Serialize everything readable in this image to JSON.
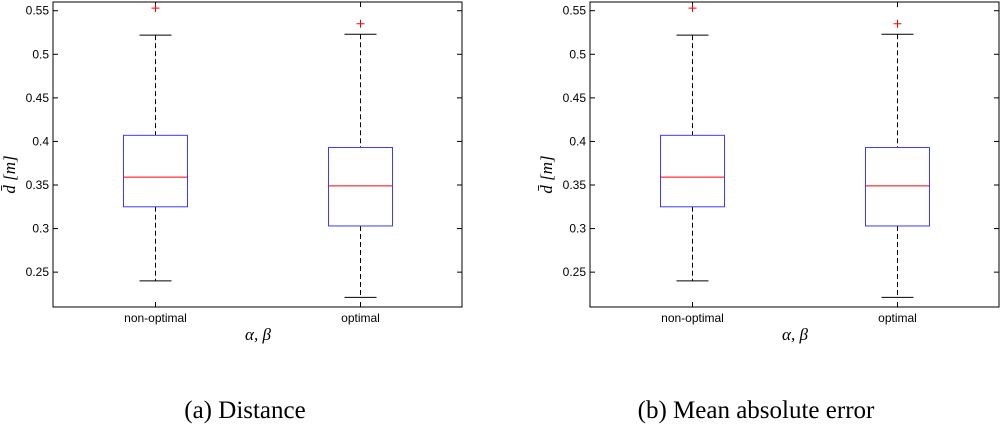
{
  "figure": {
    "captions": [
      "(a)  Distance",
      "(b)  Mean absolute error"
    ]
  },
  "chart_data": [
    {
      "type": "box",
      "title": "",
      "xlabel": "α, β",
      "ylabel": "d̄ [m]",
      "categories": [
        "non-optimal",
        "optimal"
      ],
      "ylim": [
        0.21,
        0.56
      ],
      "yticks": [
        0.25,
        0.3,
        0.35,
        0.4,
        0.45,
        0.5,
        0.55
      ],
      "ytick_labels": [
        "0.25",
        "0.3",
        "0.35",
        "0.4",
        "0.45",
        "0.5",
        "0.55"
      ],
      "grid": false,
      "boxes": [
        {
          "category": "non-optimal",
          "whisker_low": 0.24,
          "q1": 0.325,
          "median": 0.359,
          "q3": 0.407,
          "whisker_high": 0.522,
          "outliers": [
            0.553
          ]
        },
        {
          "category": "optimal",
          "whisker_low": 0.221,
          "q1": 0.303,
          "median": 0.349,
          "q3": 0.393,
          "whisker_high": 0.523,
          "outliers": [
            0.535
          ]
        }
      ],
      "colors": {
        "box": "#3b3bff",
        "median": "#ff0000",
        "whisker": "#000000",
        "outlier": "#ff0000"
      }
    },
    {
      "type": "box",
      "title": "",
      "xlabel": "α, β",
      "ylabel": "d̄ [m]",
      "categories": [
        "non-optimal",
        "optimal"
      ],
      "ylim": [
        0.21,
        0.56
      ],
      "yticks": [
        0.25,
        0.3,
        0.35,
        0.4,
        0.45,
        0.5,
        0.55
      ],
      "ytick_labels": [
        "0.25",
        "0.3",
        "0.35",
        "0.4",
        "0.45",
        "0.5",
        "0.55"
      ],
      "grid": false,
      "boxes": [
        {
          "category": "non-optimal",
          "whisker_low": 0.24,
          "q1": 0.325,
          "median": 0.359,
          "q3": 0.407,
          "whisker_high": 0.522,
          "outliers": [
            0.553
          ]
        },
        {
          "category": "optimal",
          "whisker_low": 0.221,
          "q1": 0.303,
          "median": 0.349,
          "q3": 0.393,
          "whisker_high": 0.523,
          "outliers": [
            0.535
          ]
        }
      ],
      "colors": {
        "box": "#3b3bff",
        "median": "#ff0000",
        "whisker": "#000000",
        "outlier": "#ff0000"
      }
    }
  ]
}
